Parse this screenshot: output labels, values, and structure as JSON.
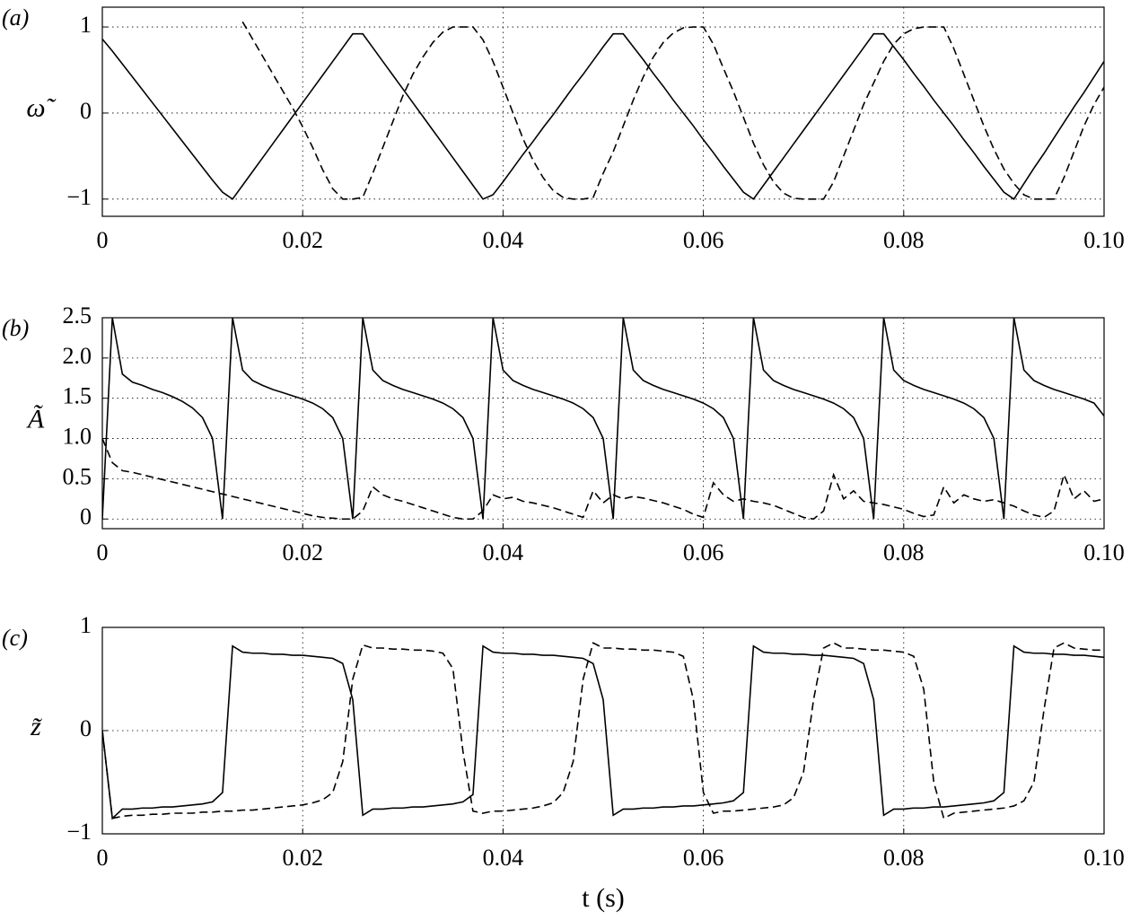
{
  "chart_data": [
    {
      "type": "line",
      "panel_label": "(a)",
      "ylabel": "ω̃",
      "x": [
        0,
        0.001,
        0.002,
        0.003,
        0.004,
        0.005,
        0.006,
        0.007,
        0.008,
        0.009,
        0.01,
        0.011,
        0.012,
        0.013,
        0.014,
        0.015,
        0.016,
        0.017,
        0.018,
        0.019,
        0.02,
        0.021,
        0.022,
        0.023,
        0.024,
        0.025,
        0.026,
        0.027,
        0.028,
        0.029,
        0.03,
        0.031,
        0.032,
        0.033,
        0.034,
        0.035,
        0.036,
        0.037,
        0.038,
        0.039,
        0.04,
        0.041,
        0.042,
        0.043,
        0.044,
        0.045,
        0.046,
        0.047,
        0.048,
        0.049,
        0.05,
        0.051,
        0.052,
        0.053,
        0.054,
        0.055,
        0.056,
        0.057,
        0.058,
        0.059,
        0.06,
        0.061,
        0.062,
        0.063,
        0.064,
        0.065,
        0.066,
        0.067,
        0.068,
        0.069,
        0.07,
        0.071,
        0.072,
        0.073,
        0.074,
        0.075,
        0.076,
        0.077,
        0.078,
        0.079,
        0.08,
        0.081,
        0.082,
        0.083,
        0.084,
        0.085,
        0.086,
        0.087,
        0.088,
        0.089,
        0.09,
        0.091,
        0.092,
        0.093,
        0.094,
        0.095,
        0.096,
        0.097,
        0.098,
        0.099,
        0.1
      ],
      "series": [
        {
          "color": "#000000",
          "style": "solid",
          "values": [
            0.86,
            0.72,
            0.57,
            0.42,
            0.27,
            0.12,
            -0.03,
            -0.18,
            -0.33,
            -0.48,
            -0.63,
            -0.78,
            -0.92,
            -1,
            -0.84,
            -0.68,
            -0.52,
            -0.36,
            -0.2,
            -0.04,
            0.12,
            0.28,
            0.44,
            0.6,
            0.76,
            0.92,
            0.92,
            0.76,
            0.6,
            0.44,
            0.28,
            0.12,
            -0.04,
            -0.2,
            -0.36,
            -0.52,
            -0.68,
            -0.84,
            -1,
            -0.95,
            -0.8,
            -0.64,
            -0.48,
            -0.33,
            -0.17,
            -0.02,
            0.14,
            0.3,
            0.45,
            0.61,
            0.77,
            0.92,
            0.92,
            0.77,
            0.62,
            0.46,
            0.31,
            0.15,
            0,
            -0.15,
            -0.31,
            -0.46,
            -0.62,
            -0.77,
            -0.92,
            -1,
            -0.84,
            -0.68,
            -0.52,
            -0.36,
            -0.2,
            -0.04,
            0.12,
            0.28,
            0.44,
            0.6,
            0.76,
            0.92,
            0.92,
            0.77,
            0.62,
            0.46,
            0.31,
            0.15,
            0,
            -0.15,
            -0.31,
            -0.46,
            -0.62,
            -0.77,
            -0.92,
            -1,
            -0.82,
            -0.64,
            -0.47,
            -0.29,
            -0.11,
            0.07,
            0.24,
            0.42,
            0.6
          ]
        },
        {
          "color": "#000000",
          "style": "dashed",
          "values": [
            null,
            null,
            null,
            null,
            null,
            null,
            null,
            null,
            null,
            null,
            null,
            null,
            null,
            null,
            1.06,
            0.86,
            0.66,
            0.46,
            0.26,
            0.06,
            -0.16,
            -0.4,
            -0.66,
            -0.88,
            -1,
            -1,
            -0.98,
            -0.7,
            -0.4,
            -0.1,
            0.2,
            0.45,
            0.65,
            0.82,
            0.94,
            1,
            1,
            1,
            0.85,
            0.6,
            0.3,
            0,
            -0.3,
            -0.55,
            -0.75,
            -0.9,
            -0.98,
            -1,
            -1,
            -0.98,
            -0.7,
            -0.45,
            -0.15,
            0.15,
            0.42,
            0.65,
            0.82,
            0.93,
            0.99,
            1,
            1,
            0.8,
            0.52,
            0.25,
            -0.05,
            -0.35,
            -0.6,
            -0.8,
            -0.93,
            -0.99,
            -1,
            -1,
            -1,
            -0.8,
            -0.5,
            -0.2,
            0.1,
            0.35,
            0.6,
            0.8,
            0.92,
            0.98,
            1,
            1,
            1,
            0.75,
            0.45,
            0.15,
            -0.15,
            -0.42,
            -0.65,
            -0.82,
            -0.95,
            -1,
            -1,
            -1,
            -0.75,
            -0.45,
            -0.15,
            0.1,
            0.3
          ]
        }
      ],
      "xlim": [
        0,
        0.1
      ],
      "xticks": [
        0,
        0.02,
        0.04,
        0.06,
        0.08,
        {
          "value": 0.1,
          "label": "0.10"
        }
      ],
      "ylim": [
        -1.2,
        1.23
      ],
      "yticks": [
        {
          "value": -1,
          "label": "−1"
        },
        0,
        1
      ],
      "grid": true
    },
    {
      "type": "line",
      "panel_label": "(b)",
      "ylabel": "Ã",
      "x": [
        0,
        0.001,
        0.002,
        0.003,
        0.004,
        0.005,
        0.006,
        0.007,
        0.008,
        0.009,
        0.01,
        0.011,
        0.012,
        0.013,
        0.014,
        0.015,
        0.016,
        0.017,
        0.018,
        0.019,
        0.02,
        0.021,
        0.022,
        0.023,
        0.024,
        0.025,
        0.026,
        0.027,
        0.028,
        0.029,
        0.03,
        0.031,
        0.032,
        0.033,
        0.034,
        0.035,
        0.036,
        0.037,
        0.038,
        0.039,
        0.04,
        0.041,
        0.042,
        0.043,
        0.044,
        0.045,
        0.046,
        0.047,
        0.048,
        0.049,
        0.05,
        0.051,
        0.052,
        0.053,
        0.054,
        0.055,
        0.056,
        0.057,
        0.058,
        0.059,
        0.06,
        0.061,
        0.062,
        0.063,
        0.064,
        0.065,
        0.066,
        0.067,
        0.068,
        0.069,
        0.07,
        0.071,
        0.072,
        0.073,
        0.074,
        0.075,
        0.076,
        0.077,
        0.078,
        0.079,
        0.08,
        0.081,
        0.082,
        0.083,
        0.084,
        0.085,
        0.086,
        0.087,
        0.088,
        0.089,
        0.09,
        0.091,
        0.092,
        0.093,
        0.094,
        0.095,
        0.096,
        0.097,
        0.098,
        0.099,
        0.1
      ],
      "series": [
        {
          "color": "#000000",
          "style": "solid",
          "values": [
            0,
            2.5,
            1.8,
            1.7,
            1.66,
            1.61,
            1.57,
            1.52,
            1.46,
            1.38,
            1.26,
            1,
            0,
            2.5,
            1.85,
            1.72,
            1.66,
            1.61,
            1.57,
            1.53,
            1.49,
            1.44,
            1.37,
            1.26,
            1,
            0,
            2.5,
            1.85,
            1.72,
            1.66,
            1.61,
            1.57,
            1.53,
            1.49,
            1.44,
            1.37,
            1.26,
            1,
            0,
            2.5,
            1.85,
            1.72,
            1.66,
            1.61,
            1.57,
            1.53,
            1.49,
            1.44,
            1.37,
            1.26,
            1,
            0,
            2.5,
            1.85,
            1.72,
            1.66,
            1.61,
            1.57,
            1.53,
            1.49,
            1.44,
            1.37,
            1.26,
            1,
            0,
            2.5,
            1.85,
            1.72,
            1.66,
            1.61,
            1.57,
            1.53,
            1.49,
            1.44,
            1.37,
            1.26,
            1,
            0,
            2.5,
            1.85,
            1.72,
            1.66,
            1.61,
            1.57,
            1.53,
            1.49,
            1.44,
            1.37,
            1.26,
            1,
            0,
            2.5,
            1.85,
            1.72,
            1.66,
            1.61,
            1.57,
            1.53,
            1.49,
            1.44,
            1.28
          ]
        },
        {
          "color": "#000000",
          "style": "dashed",
          "values": [
            1,
            0.7,
            0.6,
            0.58,
            0.55,
            0.52,
            0.49,
            0.46,
            0.43,
            0.4,
            0.37,
            0.34,
            0.31,
            0.28,
            0.25,
            0.22,
            0.19,
            0.16,
            0.13,
            0.1,
            0.07,
            0.04,
            0.02,
            0.01,
            0,
            0,
            0.1,
            0.4,
            0.3,
            0.25,
            0.22,
            0.18,
            0.14,
            0.1,
            0.06,
            0.02,
            0,
            0,
            0.1,
            0.3,
            0.25,
            0.27,
            0.22,
            0.2,
            0.17,
            0.14,
            0.1,
            0.06,
            0.02,
            0.35,
            0.2,
            0.3,
            0.25,
            0.28,
            0.26,
            0.23,
            0.2,
            0.16,
            0.12,
            0.06,
            0.02,
            0.45,
            0.3,
            0.22,
            0.25,
            0.22,
            0.2,
            0.17,
            0.12,
            0.07,
            0.02,
            0,
            0.1,
            0.55,
            0.25,
            0.35,
            0.22,
            0.2,
            0.18,
            0.15,
            0.12,
            0.07,
            0.03,
            0.05,
            0.4,
            0.2,
            0.3,
            0.25,
            0.22,
            0.24,
            0.2,
            0.16,
            0.1,
            0.05,
            0.02,
            0.1,
            0.55,
            0.25,
            0.35,
            0.22,
            0.25
          ]
        }
      ],
      "xlim": [
        0,
        0.1
      ],
      "xticks": [
        0,
        0.02,
        0.04,
        0.06,
        0.08,
        {
          "value": 0.1,
          "label": "0.10"
        }
      ],
      "ylim": [
        -0.12,
        2.5
      ],
      "yticks": [
        0,
        0.5,
        {
          "value": 1,
          "label": "1.0"
        },
        1.5,
        {
          "value": 2,
          "label": "2.0"
        },
        2.5
      ],
      "grid": true
    },
    {
      "type": "line",
      "panel_label": "(c)",
      "ylabel": "z̃",
      "xlabel": "t (s)",
      "x": [
        0,
        0.001,
        0.002,
        0.003,
        0.004,
        0.005,
        0.006,
        0.007,
        0.008,
        0.009,
        0.01,
        0.011,
        0.012,
        0.013,
        0.014,
        0.015,
        0.016,
        0.017,
        0.018,
        0.019,
        0.02,
        0.021,
        0.022,
        0.023,
        0.024,
        0.025,
        0.026,
        0.027,
        0.028,
        0.029,
        0.03,
        0.031,
        0.032,
        0.033,
        0.034,
        0.035,
        0.036,
        0.037,
        0.038,
        0.039,
        0.04,
        0.041,
        0.042,
        0.043,
        0.044,
        0.045,
        0.046,
        0.047,
        0.048,
        0.049,
        0.05,
        0.051,
        0.052,
        0.053,
        0.054,
        0.055,
        0.056,
        0.057,
        0.058,
        0.059,
        0.06,
        0.061,
        0.062,
        0.063,
        0.064,
        0.065,
        0.066,
        0.067,
        0.068,
        0.069,
        0.07,
        0.071,
        0.072,
        0.073,
        0.074,
        0.075,
        0.076,
        0.077,
        0.078,
        0.079,
        0.08,
        0.081,
        0.082,
        0.083,
        0.084,
        0.085,
        0.086,
        0.087,
        0.088,
        0.089,
        0.09,
        0.091,
        0.092,
        0.093,
        0.094,
        0.095,
        0.096,
        0.097,
        0.098,
        0.099,
        0.1
      ],
      "series": [
        {
          "color": "#000000",
          "style": "solid",
          "values": [
            0,
            -0.85,
            -0.76,
            -0.76,
            -0.75,
            -0.75,
            -0.74,
            -0.74,
            -0.73,
            -0.72,
            -0.71,
            -0.69,
            -0.6,
            0.82,
            0.76,
            0.75,
            0.75,
            0.74,
            0.74,
            0.73,
            0.73,
            0.72,
            0.71,
            0.7,
            0.65,
            0.3,
            -0.82,
            -0.76,
            -0.76,
            -0.75,
            -0.75,
            -0.74,
            -0.74,
            -0.73,
            -0.72,
            -0.71,
            -0.69,
            -0.62,
            0.82,
            0.76,
            0.75,
            0.75,
            0.74,
            0.74,
            0.73,
            0.73,
            0.72,
            0.71,
            0.7,
            0.65,
            0.3,
            -0.82,
            -0.76,
            -0.76,
            -0.75,
            -0.75,
            -0.74,
            -0.74,
            -0.73,
            -0.73,
            -0.72,
            -0.71,
            -0.7,
            -0.68,
            -0.6,
            0.82,
            0.76,
            0.75,
            0.75,
            0.74,
            0.74,
            0.73,
            0.73,
            0.72,
            0.71,
            0.7,
            0.65,
            0.3,
            -0.82,
            -0.76,
            -0.76,
            -0.75,
            -0.75,
            -0.74,
            -0.74,
            -0.73,
            -0.72,
            -0.71,
            -0.7,
            -0.68,
            -0.6,
            0.82,
            0.76,
            0.75,
            0.75,
            0.74,
            0.74,
            0.73,
            0.73,
            0.72,
            0.71
          ]
        },
        {
          "color": "#000000",
          "style": "dashed",
          "values": [
            0,
            -0.85,
            -0.83,
            -0.82,
            -0.82,
            -0.81,
            -0.81,
            -0.8,
            -0.8,
            -0.8,
            -0.79,
            -0.79,
            -0.78,
            -0.78,
            -0.77,
            -0.77,
            -0.76,
            -0.75,
            -0.74,
            -0.73,
            -0.72,
            -0.7,
            -0.67,
            -0.6,
            -0.3,
            0.5,
            0.83,
            0.8,
            0.8,
            0.79,
            0.79,
            0.78,
            0.78,
            0.77,
            0.75,
            0.6,
            -0.2,
            -0.78,
            -0.8,
            -0.78,
            -0.78,
            -0.77,
            -0.76,
            -0.75,
            -0.73,
            -0.7,
            -0.6,
            -0.3,
            0.5,
            0.85,
            0.8,
            0.8,
            0.79,
            0.79,
            0.78,
            0.78,
            0.77,
            0.76,
            0.72,
            0.3,
            -0.6,
            -0.8,
            -0.78,
            -0.78,
            -0.77,
            -0.76,
            -0.75,
            -0.74,
            -0.72,
            -0.65,
            -0.4,
            0.3,
            0.8,
            0.85,
            0.8,
            0.8,
            0.79,
            0.78,
            0.78,
            0.77,
            0.76,
            0.72,
            0.4,
            -0.5,
            -0.85,
            -0.8,
            -0.79,
            -0.78,
            -0.77,
            -0.76,
            -0.75,
            -0.73,
            -0.68,
            -0.5,
            0.2,
            0.8,
            0.85,
            0.8,
            0.79,
            0.78,
            0.78
          ]
        }
      ],
      "xlim": [
        0,
        0.1
      ],
      "xticks": [
        0,
        0.02,
        0.04,
        0.06,
        0.08,
        {
          "value": 0.1,
          "label": "0.10"
        }
      ],
      "ylim": [
        -1,
        1
      ],
      "yticks": [
        {
          "value": -1,
          "label": "−1"
        },
        0,
        1
      ],
      "grid": true
    }
  ]
}
